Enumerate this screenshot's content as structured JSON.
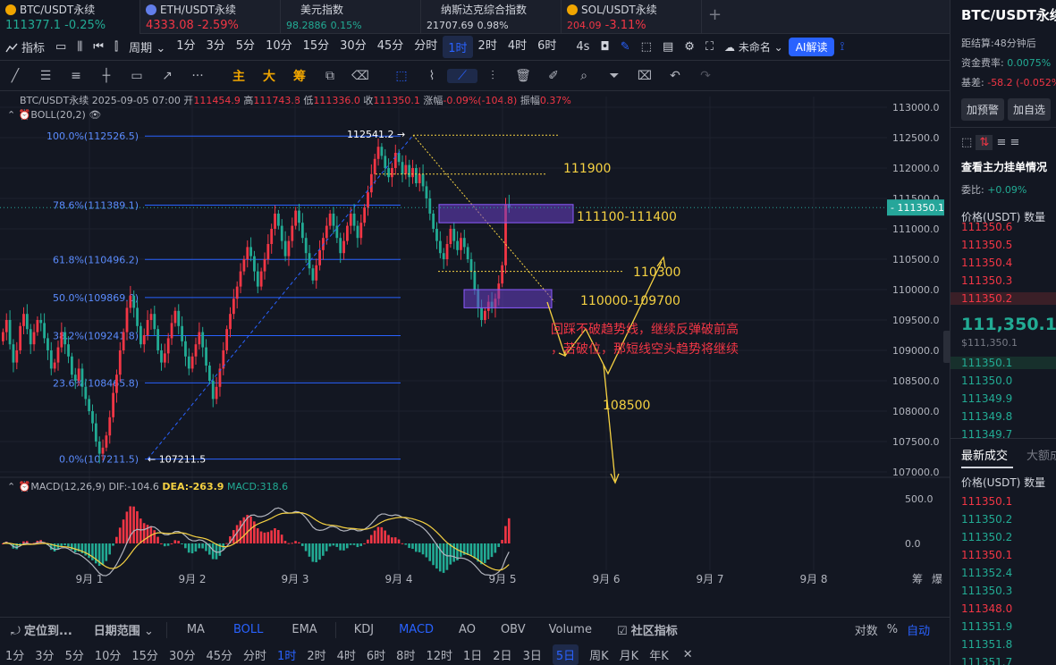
{
  "tabs": [
    {
      "name": "BTC/USDT永续",
      "price": "111377.1",
      "change": "-0.25%",
      "color": "#f0a500",
      "dir": "green"
    },
    {
      "name": "ETH/USDT永续",
      "price": "4333.08",
      "change": "-2.59%",
      "color": "#627eea",
      "dir": "red"
    },
    {
      "name": "美元指数",
      "price": "98.2886",
      "change": "0.15%",
      "color": "",
      "dir": "green"
    },
    {
      "name": "纳斯达克综合指数",
      "price": "21707.69",
      "change": "0.98%",
      "color": "",
      "dir": "white"
    },
    {
      "name": "SOL/USDT永续",
      "price": "204.09",
      "change": "-3.11%",
      "color": "#f0a500",
      "dir": "red"
    }
  ],
  "toolbar": {
    "indicators": "指标",
    "period": "周期",
    "intervals": [
      "1分",
      "3分",
      "5分",
      "10分",
      "15分",
      "30分",
      "45分",
      "分时",
      "1时",
      "2时",
      "4时",
      "6时"
    ],
    "active_interval": "1时",
    "sec": "4s",
    "unnamed": "未命名",
    "ai": "AI解读"
  },
  "drawbar": {
    "items": [
      "主",
      "大",
      "筹"
    ]
  },
  "ohlc": {
    "symbol": "BTC/USDT永续",
    "datetime": "2025-09-05 07:00",
    "open_l": "开",
    "open": "111454.9",
    "high_l": "高",
    "high": "111743.8",
    "low_l": "低",
    "low": "111336.0",
    "close_l": "收",
    "close": "111350.1",
    "chg_l": "涨幅",
    "chg": "-0.09%(-104.8)",
    "amp_l": "振幅",
    "amp": "0.37%"
  },
  "boll": "BOLL(20,2)",
  "macd": {
    "label": "MACD(12,26,9)",
    "dif": "DIF:-104.6",
    "dea": "DEA:-263.9",
    "macd": "MACD:318.6"
  },
  "chart_data": {
    "type": "candlestick",
    "y_ticks": [
      113000,
      112500,
      112000,
      111500,
      111000,
      110500,
      110000,
      109500,
      109000,
      108500,
      108000,
      107500,
      107000
    ],
    "y_range": [
      107000,
      113000
    ],
    "x_ticks": [
      "9月 1",
      "9月 2",
      "9月 3",
      "9月 4",
      "9月 5",
      "9月 6",
      "9月 7",
      "9月 8"
    ],
    "last_price": "111350.1",
    "fib_levels": [
      {
        "label": "100.0%(112526.5)",
        "value": 112526.5
      },
      {
        "label": "78.6%(111389.1)",
        "value": 111389.1
      },
      {
        "label": "61.8%(110496.2)",
        "value": 110496.2
      },
      {
        "label": "50.0%(109869.0)",
        "value": 109869.0
      },
      {
        "label": "38.2%(109241.8)",
        "value": 109241.8
      },
      {
        "label": "23.6%(108465.8)",
        "value": 108465.8
      },
      {
        "label": "0.0%(107211.5)",
        "value": 107211.5
      }
    ],
    "high_marker": "112541.2",
    "low_marker": "107211.5",
    "annotations": [
      {
        "text": "111900",
        "value": 111900
      },
      {
        "text": "111100-111400",
        "value": 111250
      },
      {
        "text": "110300",
        "value": 110300
      },
      {
        "text": "110000-109700",
        "value": 109850
      },
      {
        "text": "108500",
        "value": 108500
      }
    ],
    "note_line1": "回踩不破趋势线，继续反弹破前高",
    "note_line2": "，若破位，那短线空头趋势将继续",
    "macd_ticks": [
      "500.0",
      "0.0"
    ],
    "closes": [
      109300,
      109500,
      109100,
      108800,
      109000,
      109400,
      109600,
      109350,
      109100,
      109300,
      109500,
      109450,
      109200,
      109000,
      108700,
      108800,
      109050,
      109300,
      109100,
      108900,
      108600,
      108500,
      108700,
      108400,
      108200,
      108000,
      107800,
      107500,
      107300,
      107400,
      107600,
      107900,
      108300,
      108600,
      109000,
      109300,
      109700,
      109900,
      109700,
      109400,
      109100,
      109250,
      109500,
      109600,
      109350,
      109000,
      108800,
      108950,
      109200,
      109450,
      109650,
      109400,
      109150,
      108900,
      108700,
      108900,
      109100,
      109300,
      109050,
      108750,
      108500,
      108200,
      108400,
      108700,
      109000,
      109350,
      109600,
      109850,
      110050,
      110300,
      110500,
      110700,
      110550,
      110300,
      110050,
      110300,
      110500,
      110750,
      111000,
      111250,
      111050,
      110800,
      110550,
      110800,
      111050,
      111300,
      111100,
      110850,
      110600,
      110350,
      110150,
      110400,
      110650,
      110850,
      111050,
      111250,
      111050,
      110850,
      110600,
      110800,
      111050,
      111250,
      111050,
      110850,
      111100,
      111350,
      111600,
      111900,
      112150,
      112350,
      112200,
      112000,
      111850,
      112000,
      112250,
      112100,
      111900,
      112050,
      111850,
      112000,
      111750,
      111900,
      111700,
      111500,
      111250,
      111000,
      110800,
      110600,
      110500,
      110750,
      111000,
      110800,
      110650,
      110850,
      110700,
      110500,
      110300,
      110000,
      109700,
      109500,
      109650,
      109800,
      109700,
      109850,
      110100,
      110400,
      111400,
      111350
    ]
  },
  "right": {
    "title": "BTC/USDT永续",
    "settle_l": "距结算:",
    "settle": "48分钟后",
    "fund_l": "资金费率:",
    "fund": "0.0075%",
    "basis_l": "基差:",
    "basis": "-58.2 (-0.052%)",
    "alert": "加预警",
    "watch": "加自选",
    "depth_title": "查看主力挂单情况",
    "ratio_l": "委比:",
    "ratio": "+0.09%",
    "price_h": "价格(USDT)",
    "qty_h": "数量",
    "asks": [
      "111350.6",
      "111350.5",
      "111350.4",
      "111350.3",
      "111350.2"
    ],
    "mid": "111,350.1",
    "mid_sub": "$111,350.1",
    "bids": [
      "111350.1",
      "111350.0",
      "111349.9",
      "111349.8",
      "111349.7"
    ],
    "trades_title": "最新成交",
    "big_title": "大额成交",
    "trades": [
      {
        "p": "111350.1",
        "c": "red"
      },
      {
        "p": "111350.2",
        "c": "green"
      },
      {
        "p": "111350.2",
        "c": "green"
      },
      {
        "p": "111350.1",
        "c": "red"
      },
      {
        "p": "111352.4",
        "c": "green"
      },
      {
        "p": "111350.3",
        "c": "green"
      },
      {
        "p": "111348.0",
        "c": "red"
      },
      {
        "p": "111351.9",
        "c": "green"
      },
      {
        "p": "111351.8",
        "c": "green"
      },
      {
        "p": "111351.7",
        "c": "green"
      }
    ]
  },
  "bottom1": {
    "locate": "定位到...",
    "range": "日期范围",
    "inds": [
      "MA",
      "BOLL",
      "EMA",
      "KDJ",
      "MACD",
      "AO",
      "OBV",
      "Volume"
    ],
    "community": "社区指标",
    "scale1": "对数",
    "scale2": "%",
    "auto": "自动"
  },
  "bottom2": {
    "items": [
      "1分",
      "3分",
      "5分",
      "10分",
      "15分",
      "30分",
      "45分",
      "分时",
      "1时",
      "2时",
      "4时",
      "6时",
      "8时",
      "12时",
      "1日",
      "2日",
      "3日",
      "5日",
      "周K",
      "月K",
      "年K"
    ],
    "active": "1时",
    "selected": "5日"
  },
  "xlabels_extra": {
    "chou": "筹",
    "bao": "爆"
  }
}
